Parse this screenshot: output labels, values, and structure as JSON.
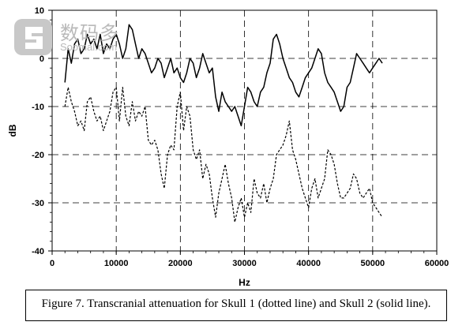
{
  "watermark": {
    "cn": "数码多",
    "en": "Soomal.com"
  },
  "caption": "Figure 7. Transcranial attenuation for Skull 1 (dotted line) and Skull 2 (solid line).",
  "chart_data": {
    "type": "line",
    "xlabel": "Hz",
    "ylabel": "dB",
    "xlim": [
      0,
      60000
    ],
    "ylim": [
      -40,
      10
    ],
    "xticks": [
      "0",
      "10000",
      "20000",
      "30000",
      "40000",
      "50000",
      "60000"
    ],
    "yticks": [
      "10",
      "0",
      "-10",
      "-20",
      "-30",
      "-40"
    ],
    "grid": "dashed",
    "colors": {
      "line": "#000000",
      "grid": "#000000"
    },
    "series": [
      {
        "name": "Skull 1",
        "style": "dotted",
        "x": [
          2000,
          2500,
          3000,
          3500,
          4000,
          4500,
          5000,
          5500,
          6000,
          6500,
          7000,
          7500,
          8000,
          8500,
          9000,
          9500,
          10000,
          10500,
          11000,
          11500,
          12000,
          12500,
          13000,
          13500,
          14000,
          14500,
          15000,
          15500,
          16000,
          16500,
          17000,
          17500,
          18000,
          18500,
          19000,
          19500,
          20000,
          20500,
          21000,
          21500,
          22000,
          22500,
          23000,
          23500,
          24000,
          24500,
          25000,
          25500,
          26000,
          26500,
          27000,
          27500,
          28000,
          28500,
          29000,
          29500,
          30000,
          30500,
          31000,
          31500,
          32000,
          32500,
          33000,
          33500,
          34000,
          34500,
          35000,
          35500,
          36000,
          36500,
          37000,
          37500,
          38000,
          38500,
          39000,
          39500,
          40000,
          40500,
          41000,
          41500,
          42000,
          42500,
          43000,
          43500,
          44000,
          44500,
          45000,
          45500,
          46000,
          46500,
          47000,
          47500,
          48000,
          48500,
          49000,
          49500,
          50000,
          50500,
          51000,
          51500
        ],
        "y": [
          -10,
          -6,
          -9,
          -11,
          -14,
          -13,
          -15,
          -9,
          -8,
          -11,
          -13,
          -12,
          -15,
          -13,
          -11,
          -7,
          -6,
          -13,
          -6,
          -12,
          -14,
          -9,
          -13,
          -11,
          -12,
          -10,
          -17,
          -18,
          -17,
          -19,
          -24,
          -27,
          -20,
          -18,
          -19,
          -10,
          -7,
          -15,
          -10,
          -12,
          -19,
          -21,
          -19,
          -25,
          -22,
          -24,
          -29,
          -33,
          -28,
          -25,
          -22,
          -26,
          -29,
          -34,
          -31,
          -29,
          -33,
          -30,
          -32,
          -25,
          -28,
          -29,
          -26,
          -30,
          -27,
          -25,
          -20,
          -19,
          -18,
          -16,
          -13,
          -19,
          -21,
          -24,
          -27,
          -29,
          -31,
          -27,
          -25,
          -29,
          -27,
          -25,
          -19,
          -20,
          -22,
          -26,
          -29,
          -29,
          -28,
          -27,
          -24,
          -25,
          -28,
          -29,
          -28,
          -27,
          -30,
          -31,
          -32,
          -33
        ]
      },
      {
        "name": "Skull 2",
        "style": "solid",
        "x": [
          2000,
          2500,
          3000,
          3500,
          4000,
          4500,
          5000,
          5500,
          6000,
          6500,
          7000,
          7500,
          8000,
          8500,
          9000,
          9500,
          10000,
          10500,
          11000,
          11500,
          12000,
          12500,
          13000,
          13500,
          14000,
          14500,
          15000,
          15500,
          16000,
          16500,
          17000,
          17500,
          18000,
          18500,
          19000,
          19500,
          20000,
          20500,
          21000,
          21500,
          22000,
          22500,
          23000,
          23500,
          24000,
          24500,
          25000,
          25500,
          26000,
          26500,
          27000,
          27500,
          28000,
          28500,
          29000,
          29500,
          30000,
          30500,
          31000,
          31500,
          32000,
          32500,
          33000,
          33500,
          34000,
          34500,
          35000,
          35500,
          36000,
          36500,
          37000,
          37500,
          38000,
          38500,
          39000,
          39500,
          40000,
          40500,
          41000,
          41500,
          42000,
          42500,
          43000,
          43500,
          44000,
          44500,
          45000,
          45500,
          46000,
          46500,
          47000,
          47500,
          48000,
          48500,
          49000,
          49500,
          50000,
          50500,
          51000,
          51500
        ],
        "y": [
          -5,
          2,
          -1,
          3,
          4,
          1,
          2,
          5,
          3,
          4,
          2,
          5,
          1,
          3,
          2,
          4,
          5,
          3,
          0,
          2,
          7,
          6,
          3,
          0,
          2,
          1,
          -1,
          -3,
          -2,
          0,
          -1,
          -4,
          -2,
          0,
          -3,
          -2,
          -4,
          -5,
          -3,
          0,
          -1,
          -4,
          -2,
          1,
          -1,
          -3,
          -2,
          -8,
          -11,
          -7,
          -9,
          -10,
          -11,
          -10,
          -12,
          -14,
          -10,
          -6,
          -7,
          -9,
          -10,
          -7,
          -6,
          -3,
          -1,
          4,
          5,
          3,
          0,
          -2,
          -4,
          -5,
          -7,
          -8,
          -6,
          -4,
          -3,
          -2,
          0,
          2,
          1,
          -3,
          -5,
          -6,
          -7,
          -9,
          -11,
          -10,
          -6,
          -5,
          -2,
          1,
          0,
          -1,
          -2,
          -3,
          -2,
          -1,
          0,
          -1
        ]
      }
    ]
  }
}
